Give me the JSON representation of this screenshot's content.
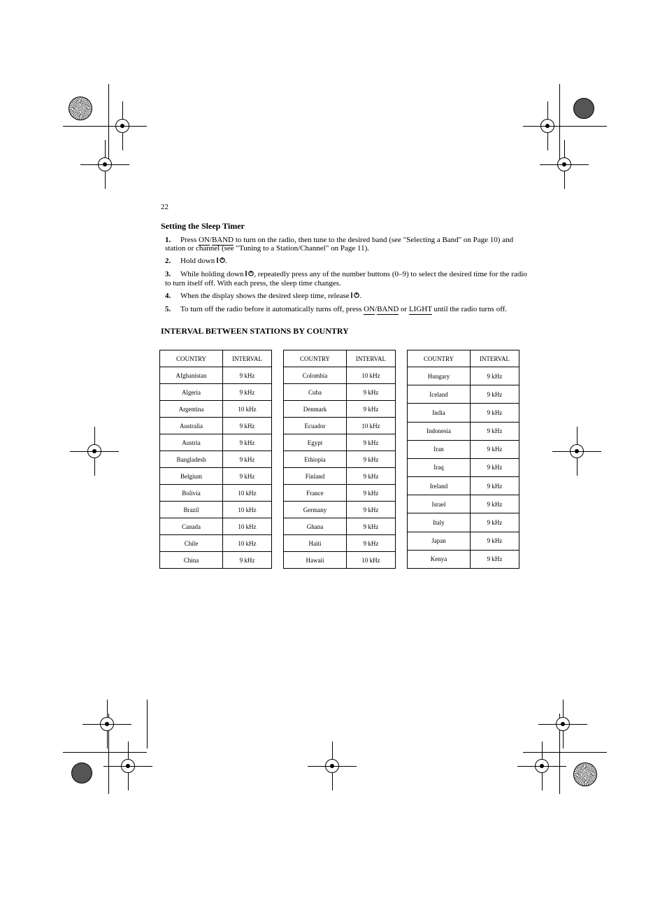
{
  "page": {
    "number": "22"
  },
  "section_title": "Setting the Sleep Timer",
  "steps": [
    {
      "num": "1",
      "pre": "Press ",
      "key1": "ON",
      "mid1": "/",
      "key2": "BAND",
      "mid2": " to turn on the radio, then tune to the desired band (see \"Selecting a Band\" on Page 10) and station or channel (see \"Tuning to a Station/Channel\" on Page 11)."
    },
    {
      "num": "2",
      "pre": "Hold down ",
      "icon": true,
      "post": "."
    },
    {
      "num": "3",
      "pre": "While holding down ",
      "icon": true,
      "post": ", repeatedly press any of the number buttons (0–9) to select the desired time for the radio to turn itself off. With each press, the sleep time changes."
    },
    {
      "num": "4",
      "pre": "When the display shows the desired sleep time, release ",
      "icon": true,
      "post": "."
    },
    {
      "num": "5",
      "pre": "To turn off the radio before it automatically turns off, press ",
      "key1": "ON",
      "mid1": "/",
      "key2": "BAND",
      "mid2": " or ",
      "key3": "LIGHT",
      "post": " until the radio turns off."
    }
  ],
  "chart_title": "INTERVAL BETWEEN STATIONS BY COUNTRY",
  "tables": [
    {
      "columns": [
        "COUNTRY",
        "INTERVAL"
      ],
      "rows": [
        [
          "Afghanistan",
          "9 kHz"
        ],
        [
          "Algeria",
          "9 kHz"
        ],
        [
          "Argentina",
          "10 kHz"
        ],
        [
          "Australia",
          "9 kHz"
        ],
        [
          "Austria",
          "9 kHz"
        ],
        [
          "Bangladesh",
          "9 kHz"
        ],
        [
          "Belgium",
          "9 kHz"
        ],
        [
          "Bolivia",
          "10 kHz"
        ],
        [
          "Brazil",
          "10 kHz"
        ],
        [
          "Canada",
          "10 kHz"
        ],
        [
          "Chile",
          "10 kHz"
        ],
        [
          "China",
          "9 kHz"
        ]
      ]
    },
    {
      "columns": [
        "COUNTRY",
        "INTERVAL"
      ],
      "rows": [
        [
          "Colombia",
          "10 kHz"
        ],
        [
          "Cuba",
          "9 kHz"
        ],
        [
          "Denmark",
          "9 kHz"
        ],
        [
          "Ecuador",
          "10 kHz"
        ],
        [
          "Egypt",
          "9 kHz"
        ],
        [
          "Ethiopia",
          "9 kHz"
        ],
        [
          "Finland",
          "9 kHz"
        ],
        [
          "France",
          "9 kHz"
        ],
        [
          "Germany",
          "9 kHz"
        ],
        [
          "Ghana",
          "9 kHz"
        ],
        [
          "Haiti",
          "9 kHz"
        ],
        [
          "Hawaii",
          "10 kHz"
        ]
      ]
    },
    {
      "columns": [
        "COUNTRY",
        "INTERVAL"
      ],
      "rows": [
        [
          "Hungary",
          "9 kHz"
        ],
        [
          "Iceland",
          "9 kHz"
        ],
        [
          "India",
          "9 kHz"
        ],
        [
          "Indonesia",
          "9 kHz"
        ],
        [
          "Iran",
          "9 kHz"
        ],
        [
          "Iraq",
          "9 kHz"
        ],
        [
          "Ireland",
          "9 kHz"
        ],
        [
          "Israel",
          "9 kHz"
        ],
        [
          "Italy",
          "9 kHz"
        ],
        [
          "Japan",
          "9 kHz"
        ],
        [
          "Kenya",
          "9 kHz"
        ]
      ]
    }
  ],
  "colors": {
    "page_bg": "#ffffff",
    "text": "#000000",
    "border": "#000000",
    "regmark_fill": "#555555"
  }
}
